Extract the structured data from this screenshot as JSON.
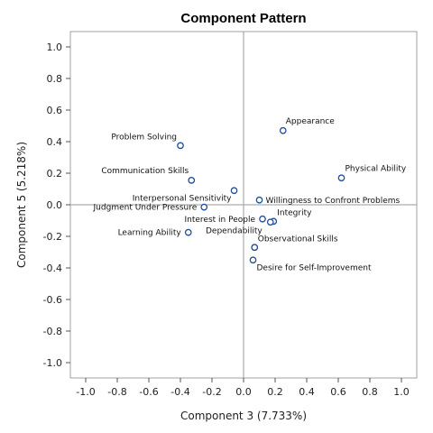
{
  "chart_data": {
    "type": "scatter",
    "title": "Component Pattern",
    "xlabel": "Component 3 (7.733%)",
    "ylabel": "Component 5 (5.218%)",
    "xlim": [
      -1.0,
      1.0
    ],
    "ylim": [
      -1.0,
      1.0
    ],
    "xticks": [
      "-1.0",
      "-0.8",
      "-0.6",
      "-0.4",
      "-0.2",
      "0.0",
      "0.2",
      "0.4",
      "0.6",
      "0.8",
      "1.0"
    ],
    "yticks": [
      "1.0",
      "0.8",
      "0.6",
      "0.4",
      "0.2",
      "0.0",
      "-0.2",
      "-0.4",
      "-0.6",
      "-0.8",
      "-1.0"
    ],
    "reference_lines": {
      "x": 0,
      "y": 0
    },
    "grid": false,
    "marker_color": "#1f4e96",
    "points": [
      {
        "label": "Appearance",
        "x": 0.25,
        "y": 0.47
      },
      {
        "label": "Problem Solving",
        "x": -0.4,
        "y": 0.375
      },
      {
        "label": "Physical Ability",
        "x": 0.62,
        "y": 0.17
      },
      {
        "label": "Communication Skills",
        "x": -0.33,
        "y": 0.155
      },
      {
        "label": "Interpersonal Sensitivity",
        "x": -0.06,
        "y": 0.09
      },
      {
        "label": "Willingness to Confront Problems",
        "x": 0.1,
        "y": 0.03
      },
      {
        "label": "Judgment Under Pressure",
        "x": -0.25,
        "y": -0.015
      },
      {
        "label": "Integrity",
        "x": 0.19,
        "y": -0.105
      },
      {
        "label": "Interest in People",
        "x": 0.12,
        "y": -0.09
      },
      {
        "label": "",
        "x": 0.17,
        "y": -0.11
      },
      {
        "label": "Dependability",
        "x": 0.07,
        "y": -0.27
      },
      {
        "label": "Learning Ability",
        "x": -0.35,
        "y": -0.175
      },
      {
        "label": "Observational Skills",
        "x": 0.07,
        "y": -0.27
      },
      {
        "label": "Desire for Self-Improvement",
        "x": 0.06,
        "y": -0.35
      }
    ]
  }
}
